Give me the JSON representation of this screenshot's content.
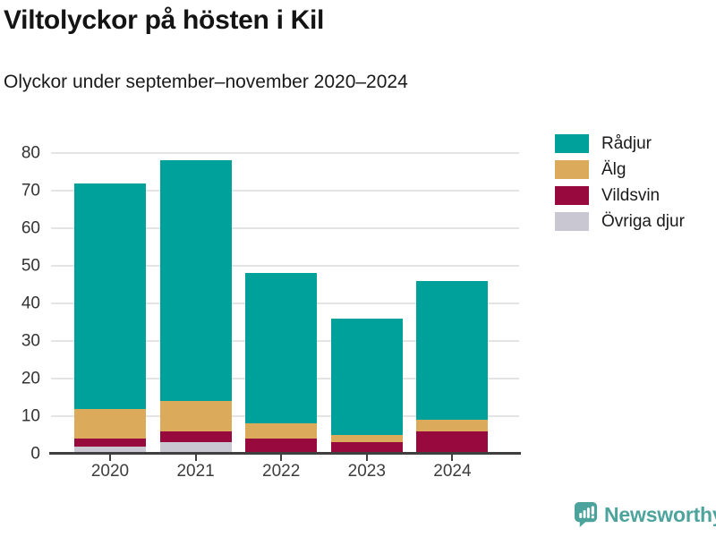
{
  "header": {
    "title": "Viltolyckor på hösten i Kil",
    "subtitle": "Olyckor under september–november 2020–2024"
  },
  "chart_data": {
    "type": "bar",
    "stacked": true,
    "title": "Viltolyckor på hösten i Kil",
    "subtitle": "Olyckor under september–november 2020–2024",
    "categories": [
      "2020",
      "2021",
      "2022",
      "2023",
      "2024"
    ],
    "series": [
      {
        "name": "Rådjur",
        "color": "#00a09b",
        "values": [
          60,
          64,
          40,
          31,
          37
        ]
      },
      {
        "name": "Älg",
        "color": "#dbab5b",
        "values": [
          8,
          8,
          4,
          2,
          3
        ]
      },
      {
        "name": "Vildsvin",
        "color": "#98093e",
        "values": [
          2,
          3,
          4,
          3,
          6
        ]
      },
      {
        "name": "Övriga djur",
        "color": "#c8c7d2",
        "values": [
          2,
          3,
          0,
          0,
          0
        ]
      }
    ],
    "stack_order_bottom_to_top": [
      "Övriga djur",
      "Vildsvin",
      "Älg",
      "Rådjur"
    ],
    "stack_totals": [
      72,
      78,
      48,
      36,
      46
    ],
    "xlabel": "",
    "ylabel": "",
    "ylim": [
      0,
      80
    ],
    "yticks": [
      0,
      10,
      20,
      30,
      40,
      50,
      60,
      70,
      80
    ],
    "grid": "horizontal",
    "legend_position": "right",
    "colors": {
      "axis": "#3f3f3f",
      "gridline": "#e4e4e4",
      "tick_text": "#3d3d3d"
    }
  },
  "footer": {
    "brand": "Newsworthy",
    "brand_color": "#4da49d",
    "brand_icon": "bar-chart-speech-bubble"
  }
}
